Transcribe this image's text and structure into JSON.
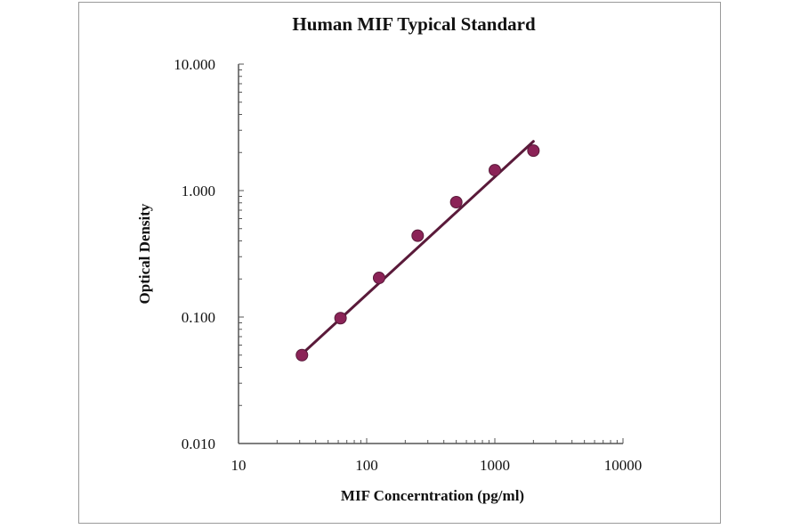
{
  "chart_data": {
    "type": "scatter",
    "title": "Human MIF Typical Standard",
    "xlabel": "MIF Concerntration (pg/ml)",
    "ylabel": "Optical Density",
    "x_scale": "log",
    "y_scale": "log",
    "xlim": [
      10,
      10000
    ],
    "ylim": [
      0.01,
      10
    ],
    "x_ticks": [
      "10",
      "100",
      "1000",
      "10000"
    ],
    "y_ticks": [
      "0.010",
      "0.100",
      "1.000",
      "10.000"
    ],
    "grid": false,
    "legend": "none",
    "colors": {
      "points": "#8b2357",
      "line": "#5a1a3a",
      "axis": "#555555"
    },
    "series": [
      {
        "x": [
          31.25,
          62.5,
          125,
          250,
          500,
          1000,
          2000
        ],
        "y": [
          0.05,
          0.098,
          0.204,
          0.44,
          0.81,
          1.45,
          2.07
        ]
      }
    ],
    "fit_line": {
      "x": [
        31.25,
        2000
      ],
      "y": [
        0.051,
        2.45
      ]
    }
  }
}
